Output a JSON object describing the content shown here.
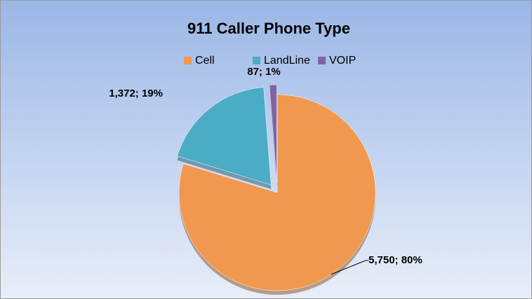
{
  "chart_data": {
    "type": "pie",
    "title": "911 Caller Phone Type",
    "categories": [
      "Cell",
      "LandLine",
      "VOIP"
    ],
    "values": [
      5750,
      1372,
      87
    ],
    "value_labels": [
      "5,750; 80%",
      "1,372; 19%",
      "87; 1%"
    ],
    "colors": [
      "#f0984f",
      "#4bacc6",
      "#8064a2"
    ],
    "legend": "top"
  }
}
